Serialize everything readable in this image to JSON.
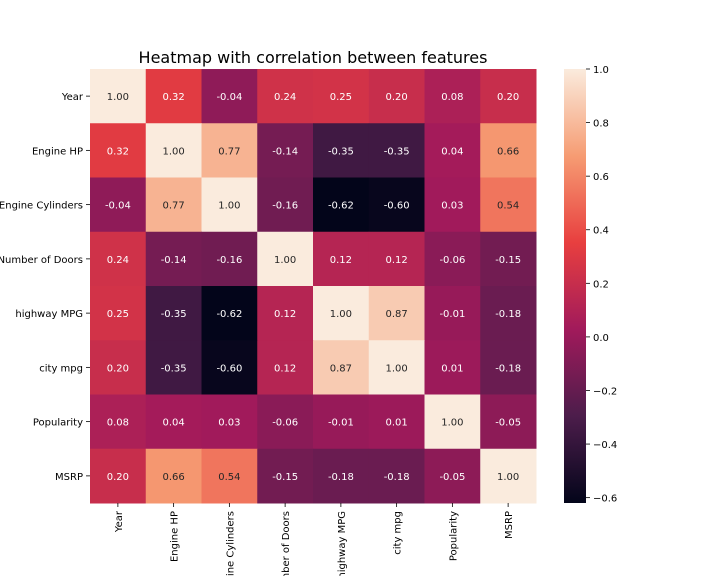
{
  "chart_data": {
    "type": "heatmap",
    "title": "Heatmap with correlation between features",
    "xlabel": "",
    "ylabel": "",
    "labels": [
      "Year",
      "Engine HP",
      "Engine Cylinders",
      "Number of Doors",
      "highway MPG",
      "city mpg",
      "Popularity",
      "MSRP"
    ],
    "values": [
      [
        1.0,
        0.32,
        -0.04,
        0.24,
        0.25,
        0.2,
        0.08,
        0.2
      ],
      [
        0.32,
        1.0,
        0.77,
        -0.14,
        -0.35,
        -0.35,
        0.04,
        0.66
      ],
      [
        -0.04,
        0.77,
        1.0,
        -0.16,
        -0.62,
        -0.6,
        0.03,
        0.54
      ],
      [
        0.24,
        -0.14,
        -0.16,
        1.0,
        0.12,
        0.12,
        -0.06,
        -0.15
      ],
      [
        0.25,
        -0.35,
        -0.62,
        0.12,
        1.0,
        0.87,
        -0.01,
        -0.18
      ],
      [
        0.2,
        -0.35,
        -0.6,
        0.12,
        0.87,
        1.0,
        0.01,
        -0.18
      ],
      [
        0.08,
        0.04,
        0.03,
        -0.06,
        -0.01,
        0.01,
        1.0,
        -0.05
      ],
      [
        0.2,
        0.66,
        0.54,
        -0.15,
        -0.18,
        -0.18,
        -0.05,
        1.0
      ]
    ],
    "value_labels": [
      [
        "1.00",
        "0.32",
        "-0.04",
        "0.24",
        "0.25",
        "0.20",
        "0.08",
        "0.20"
      ],
      [
        "0.32",
        "1.00",
        "0.77",
        "-0.14",
        "-0.35",
        "-0.35",
        "0.04",
        "0.66"
      ],
      [
        "-0.04",
        "0.77",
        "1.00",
        "-0.16",
        "-0.62",
        "-0.60",
        "0.03",
        "0.54"
      ],
      [
        "0.24",
        "-0.14",
        "-0.16",
        "1.00",
        "0.12",
        "0.12",
        "-0.06",
        "-0.15"
      ],
      [
        "0.25",
        "-0.35",
        "-0.62",
        "0.12",
        "1.00",
        "0.87",
        "-0.01",
        "-0.18"
      ],
      [
        "0.20",
        "-0.35",
        "-0.60",
        "0.12",
        "0.87",
        "1.00",
        "0.01",
        "-0.18"
      ],
      [
        "0.08",
        "0.04",
        "0.03",
        "-0.06",
        "-0.01",
        "0.01",
        "1.00",
        "-0.05"
      ],
      [
        "0.20",
        "0.66",
        "0.54",
        "-0.15",
        "-0.18",
        "-0.18",
        "-0.05",
        "1.00"
      ]
    ],
    "colorbar": {
      "range": [
        -0.62,
        1.0
      ],
      "ticks": [
        1.0,
        0.8,
        0.6,
        0.4,
        0.2,
        0.0,
        -0.2,
        -0.4,
        -0.6
      ],
      "tick_labels": [
        "1.0",
        "0.8",
        "0.6",
        "0.4",
        "0.2",
        "0.0",
        "−0.2",
        "−0.4",
        "−0.6"
      ]
    },
    "colormap": [
      "#03051a",
      "#4c1d4b",
      "#a11a5b",
      "#e83f3f",
      "#f69c73",
      "#faebdd"
    ],
    "grid": false,
    "legend": "colorbar-right"
  }
}
